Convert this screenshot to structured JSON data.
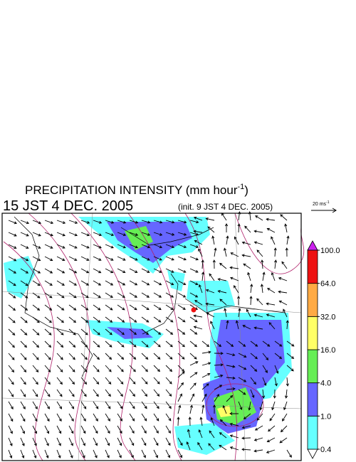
{
  "header": {
    "title": "PRECIPITATION INTENSITY (mm hour",
    "title_exponent": "-1",
    "title_close": ")",
    "valid_time": "15 JST 4 DEC. 2005",
    "init_time": "(init. 9 JST 4 DEC. 2005)"
  },
  "vector_scale": {
    "label": "20 ms",
    "exponent": "-1"
  },
  "colorbar": {
    "levels": [
      {
        "value": 0.4,
        "label": "0.4"
      },
      {
        "value": 1,
        "label": "1.0"
      },
      {
        "value": 4,
        "label": "4.0"
      },
      {
        "value": 16,
        "label": "16.0"
      },
      {
        "value": 32,
        "label": "32.0"
      },
      {
        "value": 64,
        "label": "64.0"
      },
      {
        "value": 100,
        "label": "100.0"
      }
    ],
    "colors": [
      "#66ffff",
      "#6666ff",
      "#66ee55",
      "#ffff66",
      "#ffaa44",
      "#ee1111"
    ],
    "over_color": "#cc22ee",
    "under_color": "#ffffff"
  }
}
